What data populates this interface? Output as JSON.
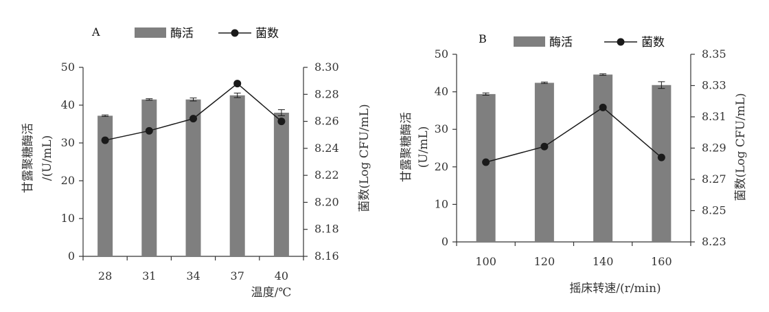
{
  "legend": {
    "bar_label": "酶活",
    "line_label": "菌数"
  },
  "colors": {
    "bar": "#7f7f7f",
    "line": "#1a1a1a",
    "axis": "#333333"
  },
  "chart_data": [
    {
      "panel": "A",
      "type": "bar+line",
      "categories": [
        "28",
        "31",
        "34",
        "37",
        "40"
      ],
      "xlabel": "温度/℃",
      "ylabel_left": "甘露聚糖酶活 /(U/mL)",
      "ylabel_right": "菌数(Log CFU/mL)",
      "ylim_left": [
        0,
        50
      ],
      "yticks_left": [
        "0",
        "10",
        "20",
        "30",
        "40",
        "50"
      ],
      "ylim_right": [
        8.16,
        8.3
      ],
      "yticks_right": [
        "8.16",
        "8.18",
        "8.20",
        "8.22",
        "8.24",
        "8.26",
        "8.28",
        "8.30"
      ],
      "series": [
        {
          "name": "酶活",
          "kind": "bar",
          "values": [
            37.2,
            41.5,
            41.5,
            42.6,
            38.0
          ],
          "errors": [
            0.2,
            0.2,
            0.4,
            0.6,
            0.8
          ]
        },
        {
          "name": "菌数",
          "kind": "line",
          "values": [
            8.246,
            8.253,
            8.262,
            8.288,
            8.26
          ],
          "errors": [
            0,
            0,
            0,
            0.001,
            0
          ]
        }
      ],
      "grid": false,
      "legend_position": "top"
    },
    {
      "panel": "B",
      "type": "bar+line",
      "categories": [
        "100",
        "120",
        "140",
        "160"
      ],
      "xlabel": "摇床转速/(r/min)",
      "ylabel_left": "甘露聚糖酶活 (U/mL)",
      "ylabel_right": "菌数(Log CFU/mL)",
      "ylim_left": [
        0,
        50
      ],
      "yticks_left": [
        "0",
        "10",
        "20",
        "30",
        "40",
        "50"
      ],
      "ylim_right": [
        8.23,
        8.35
      ],
      "yticks_right": [
        "8.23",
        "8.25",
        "8.27",
        "8.29",
        "8.31",
        "8.33",
        "8.35"
      ],
      "series": [
        {
          "name": "酶活",
          "kind": "bar",
          "values": [
            39.4,
            42.4,
            44.6,
            41.8
          ],
          "errors": [
            0.3,
            0.2,
            0.2,
            0.9
          ]
        },
        {
          "name": "菌数",
          "kind": "line",
          "values": [
            8.281,
            8.291,
            8.316,
            8.284
          ],
          "errors": [
            0,
            0,
            0.001,
            0
          ]
        }
      ],
      "grid": false,
      "legend_position": "top"
    }
  ]
}
